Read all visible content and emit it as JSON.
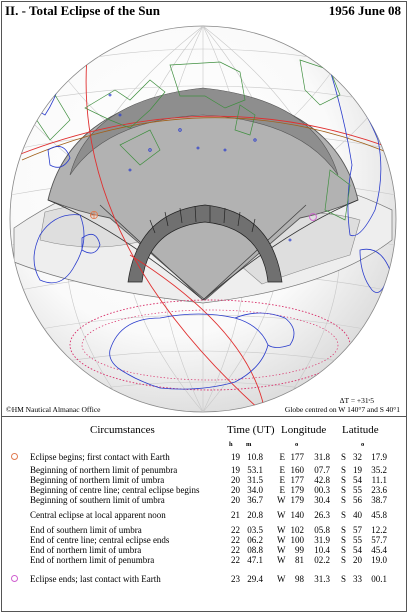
{
  "header": {
    "title": "II. - Total Eclipse of the Sun",
    "date": "1956 June 08"
  },
  "footer": {
    "copyright": "©HM Nautical Almanac Office",
    "delta_t": "ΔT = +31ˢ5",
    "globe_centre": "Globe centred on W 140°7 and S 40°1"
  },
  "colors": {
    "coastline": "#2a3ccc",
    "boundary": "#3f8f3f",
    "ecliptic_red": "#e03030",
    "limit_dotted": "#d8306a",
    "totality_band": "#707070",
    "first_contact_marker": "#e07a50",
    "last_contact_marker": "#d060d0"
  },
  "table": {
    "headers": {
      "circumstances": "Circumstances",
      "time": "Time (UT)",
      "longitude": "Longitude",
      "latitude": "Latitude"
    },
    "units": {
      "h": "h",
      "m": "m",
      "deg1": "o",
      "deg2": "o"
    },
    "rows": [
      {
        "label": "Eclipse begins; first contact with Earth",
        "marker": "first-contact",
        "h": "19",
        "m": "10.8",
        "lon_dir": "E",
        "lon_deg": "177",
        "lon_min": "31.8",
        "lat_dir": "S",
        "lat_deg": "32",
        "lat_min": "17.9"
      },
      {
        "label": "Beginning of northern limit of penumbra",
        "h": "19",
        "m": "53.1",
        "lon_dir": "E",
        "lon_deg": "160",
        "lon_min": "07.7",
        "lat_dir": "S",
        "lat_deg": "19",
        "lat_min": "35.2"
      },
      {
        "label": "Beginning of northern limit of umbra",
        "h": "20",
        "m": "31.5",
        "lon_dir": "E",
        "lon_deg": "177",
        "lon_min": "42.8",
        "lat_dir": "S",
        "lat_deg": "54",
        "lat_min": "11.1"
      },
      {
        "label": "Beginning of centre line; central eclipse begins",
        "h": "20",
        "m": "34.0",
        "lon_dir": "E",
        "lon_deg": "179",
        "lon_min": "00.3",
        "lat_dir": "S",
        "lat_deg": "55",
        "lat_min": "23.6"
      },
      {
        "label": "Beginning of southern limit of umbra",
        "h": "20",
        "m": "36.7",
        "lon_dir": "W",
        "lon_deg": "179",
        "lon_min": "30.4",
        "lat_dir": "S",
        "lat_deg": "56",
        "lat_min": "38.7"
      },
      {
        "label": "Central eclipse at local apparent noon",
        "h": "21",
        "m": "20.8",
        "lon_dir": "W",
        "lon_deg": "140",
        "lon_min": "26.3",
        "lat_dir": "S",
        "lat_deg": "40",
        "lat_min": "45.8"
      },
      {
        "label": "End of southern limit of umbra",
        "h": "22",
        "m": "03.5",
        "lon_dir": "W",
        "lon_deg": "102",
        "lon_min": "05.8",
        "lat_dir": "S",
        "lat_deg": "57",
        "lat_min": "12.2"
      },
      {
        "label": "End of centre line; central eclipse ends",
        "h": "22",
        "m": "06.2",
        "lon_dir": "W",
        "lon_deg": "100",
        "lon_min": "31.9",
        "lat_dir": "S",
        "lat_deg": "55",
        "lat_min": "57.7"
      },
      {
        "label": "End of northern limit of umbra",
        "h": "22",
        "m": "08.8",
        "lon_dir": "W",
        "lon_deg": "99",
        "lon_min": "10.4",
        "lat_dir": "S",
        "lat_deg": "54",
        "lat_min": "45.4"
      },
      {
        "label": "End of northern limit of penumbra",
        "h": "22",
        "m": "47.1",
        "lon_dir": "W",
        "lon_deg": "81",
        "lon_min": "02.2",
        "lat_dir": "S",
        "lat_deg": "20",
        "lat_min": "19.0"
      },
      {
        "label": "Eclipse ends; last contact with Earth",
        "marker": "last-contact",
        "h": "23",
        "m": "29.4",
        "lon_dir": "W",
        "lon_deg": "98",
        "lon_min": "31.3",
        "lat_dir": "S",
        "lat_deg": "33",
        "lat_min": "00.1"
      }
    ]
  }
}
